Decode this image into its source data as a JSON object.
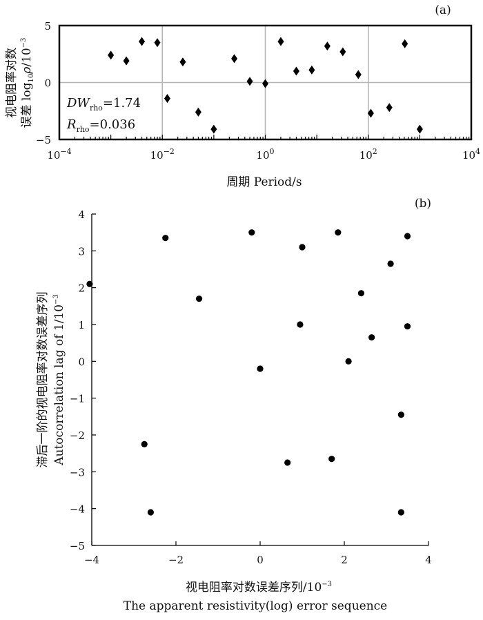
{
  "chart_data": [
    {
      "type": "scatter",
      "panel_label": "(a)",
      "x_scale": "log",
      "xlim": [
        0.0001,
        10000
      ],
      "ylim": [
        -5,
        5
      ],
      "x_ticks": [
        {
          "value": 0.0001,
          "base": "10",
          "exp": "−4"
        },
        {
          "value": 0.01,
          "base": "10",
          "exp": "−2"
        },
        {
          "value": 1,
          "base": "10",
          "exp": "0"
        },
        {
          "value": 100,
          "base": "10",
          "exp": "2"
        },
        {
          "value": 10000,
          "base": "10",
          "exp": "4"
        }
      ],
      "y_ticks": [
        "5",
        "0",
        "−5"
      ],
      "y_tick_values": [
        5,
        0,
        -5
      ],
      "grid": {
        "x": [
          0.01,
          1,
          100
        ],
        "y": [
          0
        ]
      },
      "xlabel": "周期 Period/s",
      "ylabel_line1": "视电阻率对数",
      "ylabel_line2_prefix": "误差 log",
      "ylabel_line2_sub": "10",
      "ylabel_line2_rho": "ρ",
      "ylabel_line2_mid": "/10",
      "ylabel_line2_sup": "−3",
      "marker": "diamond",
      "x": [
        0.001,
        0.002,
        0.004,
        0.008,
        0.0125,
        0.025,
        0.05,
        0.1,
        0.25,
        0.5,
        1,
        2,
        4,
        8,
        16,
        32,
        64,
        112,
        256,
        512,
        1000
      ],
      "y": [
        2.4,
        1.9,
        3.6,
        3.5,
        -1.4,
        1.8,
        -2.6,
        -4.1,
        2.1,
        0.1,
        -0.1,
        3.6,
        1.0,
        1.1,
        3.2,
        2.7,
        0.7,
        -2.7,
        -2.2,
        3.4,
        -4.1
      ],
      "stats": [
        {
          "var": "DW",
          "sub": "rho",
          "value": "=1.74"
        },
        {
          "var": "R",
          "sub": "rho",
          "value": "=0.036"
        }
      ]
    },
    {
      "type": "scatter",
      "panel_label": "(b)",
      "xlim": [
        -4,
        4
      ],
      "ylim": [
        -5,
        4
      ],
      "x_ticks": [
        "−4",
        "−2",
        "0",
        "2",
        "4"
      ],
      "x_tick_values": [
        -4,
        -2,
        0,
        2,
        4
      ],
      "y_ticks": [
        "4",
        "3",
        "2",
        "1",
        "0",
        "−1",
        "−2",
        "−3",
        "−4",
        "−5"
      ],
      "y_tick_values": [
        4,
        3,
        2,
        1,
        0,
        -1,
        -2,
        -3,
        -4,
        -5
      ],
      "xlabel_line1_prefix": "视电阻率对数误差序列/10",
      "xlabel_line1_sup": "−3",
      "xlabel_line2": "The apparent resistivity(log)  error sequence",
      "ylabel_line1": "滞后一阶的视电阻率对数误差序列",
      "ylabel_line2_prefix": "Autocorrelation lag of 1/10",
      "ylabel_line2_sup": "−3",
      "marker": "circle",
      "x": [
        -4.05,
        -2.25,
        -1.45,
        -0.2,
        0.0,
        0.95,
        1.0,
        1.85,
        2.1,
        2.4,
        2.65,
        3.1,
        3.5,
        3.5,
        -2.75,
        -2.6,
        0.65,
        1.7,
        3.35,
        3.35
      ],
      "y": [
        2.1,
        3.35,
        1.7,
        3.5,
        -0.2,
        1.0,
        3.1,
        3.5,
        0.0,
        1.85,
        0.65,
        2.65,
        3.4,
        0.95,
        -2.25,
        -4.1,
        -2.75,
        -2.65,
        -1.45,
        -4.1
      ]
    }
  ]
}
